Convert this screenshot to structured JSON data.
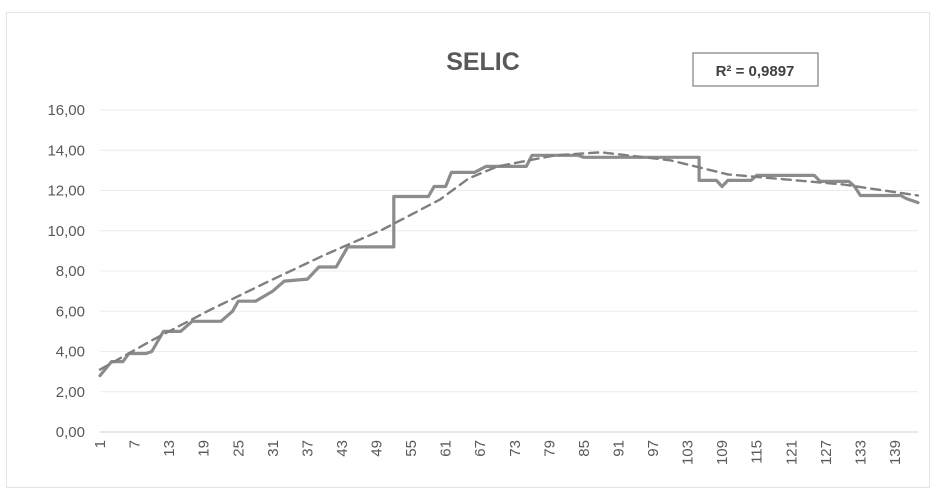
{
  "chart_data": {
    "type": "line",
    "title": "SELIC",
    "xlabel": "",
    "ylabel": "",
    "ylim": [
      0,
      16
    ],
    "y_ticks": [
      "0,00",
      "2,00",
      "4,00",
      "6,00",
      "8,00",
      "10,00",
      "12,00",
      "14,00",
      "16,00"
    ],
    "x_range": [
      1,
      143
    ],
    "x_ticks": [
      "1",
      "7",
      "13",
      "19",
      "25",
      "31",
      "37",
      "43",
      "49",
      "55",
      "61",
      "67",
      "73",
      "79",
      "85",
      "91",
      "97",
      "103",
      "109",
      "115",
      "121",
      "127",
      "133",
      "139"
    ],
    "grid": true,
    "legend": "none",
    "annotation": {
      "text": "R² = 0,9897",
      "placement": "top-right"
    },
    "series": [
      {
        "style": "solid",
        "color": "#8c8c8c",
        "points": [
          [
            1,
            2.8
          ],
          [
            3,
            3.5
          ],
          [
            5,
            3.5
          ],
          [
            6,
            3.9
          ],
          [
            9,
            3.9
          ],
          [
            10,
            4.0
          ],
          [
            12,
            5.0
          ],
          [
            15,
            5.0
          ],
          [
            17,
            5.5
          ],
          [
            22,
            5.5
          ],
          [
            24,
            6.0
          ],
          [
            25,
            6.5
          ],
          [
            28,
            6.5
          ],
          [
            31,
            7.0
          ],
          [
            33,
            7.5
          ],
          [
            37,
            7.6
          ],
          [
            39,
            8.2
          ],
          [
            42,
            8.2
          ],
          [
            44,
            9.2
          ],
          [
            52,
            9.2
          ],
          [
            52,
            11.7
          ],
          [
            58,
            11.7
          ],
          [
            59,
            12.2
          ],
          [
            61,
            12.2
          ],
          [
            62,
            12.9
          ],
          [
            66,
            12.9
          ],
          [
            68,
            13.2
          ],
          [
            75,
            13.2
          ],
          [
            76,
            13.75
          ],
          [
            84,
            13.75
          ],
          [
            85,
            13.65
          ],
          [
            105,
            13.65
          ],
          [
            105,
            12.5
          ],
          [
            108,
            12.5
          ],
          [
            109,
            12.2
          ],
          [
            110,
            12.5
          ],
          [
            114,
            12.5
          ],
          [
            115,
            12.75
          ],
          [
            125,
            12.75
          ],
          [
            126,
            12.45
          ],
          [
            131,
            12.45
          ],
          [
            132,
            12.2
          ],
          [
            133,
            11.75
          ],
          [
            140,
            11.75
          ],
          [
            141,
            11.6
          ],
          [
            143,
            11.4
          ]
        ]
      },
      {
        "style": "dashed",
        "color": "#7f7f7f",
        "points": [
          [
            1,
            3.1
          ],
          [
            10,
            4.55
          ],
          [
            20,
            6.05
          ],
          [
            30,
            7.45
          ],
          [
            40,
            8.8
          ],
          [
            50,
            10.05
          ],
          [
            60,
            11.55
          ],
          [
            65,
            12.6
          ],
          [
            70,
            13.2
          ],
          [
            80,
            13.75
          ],
          [
            88,
            13.9
          ],
          [
            100,
            13.5
          ],
          [
            110,
            12.8
          ],
          [
            120,
            12.55
          ],
          [
            130,
            12.3
          ],
          [
            143,
            11.75
          ]
        ]
      }
    ]
  }
}
